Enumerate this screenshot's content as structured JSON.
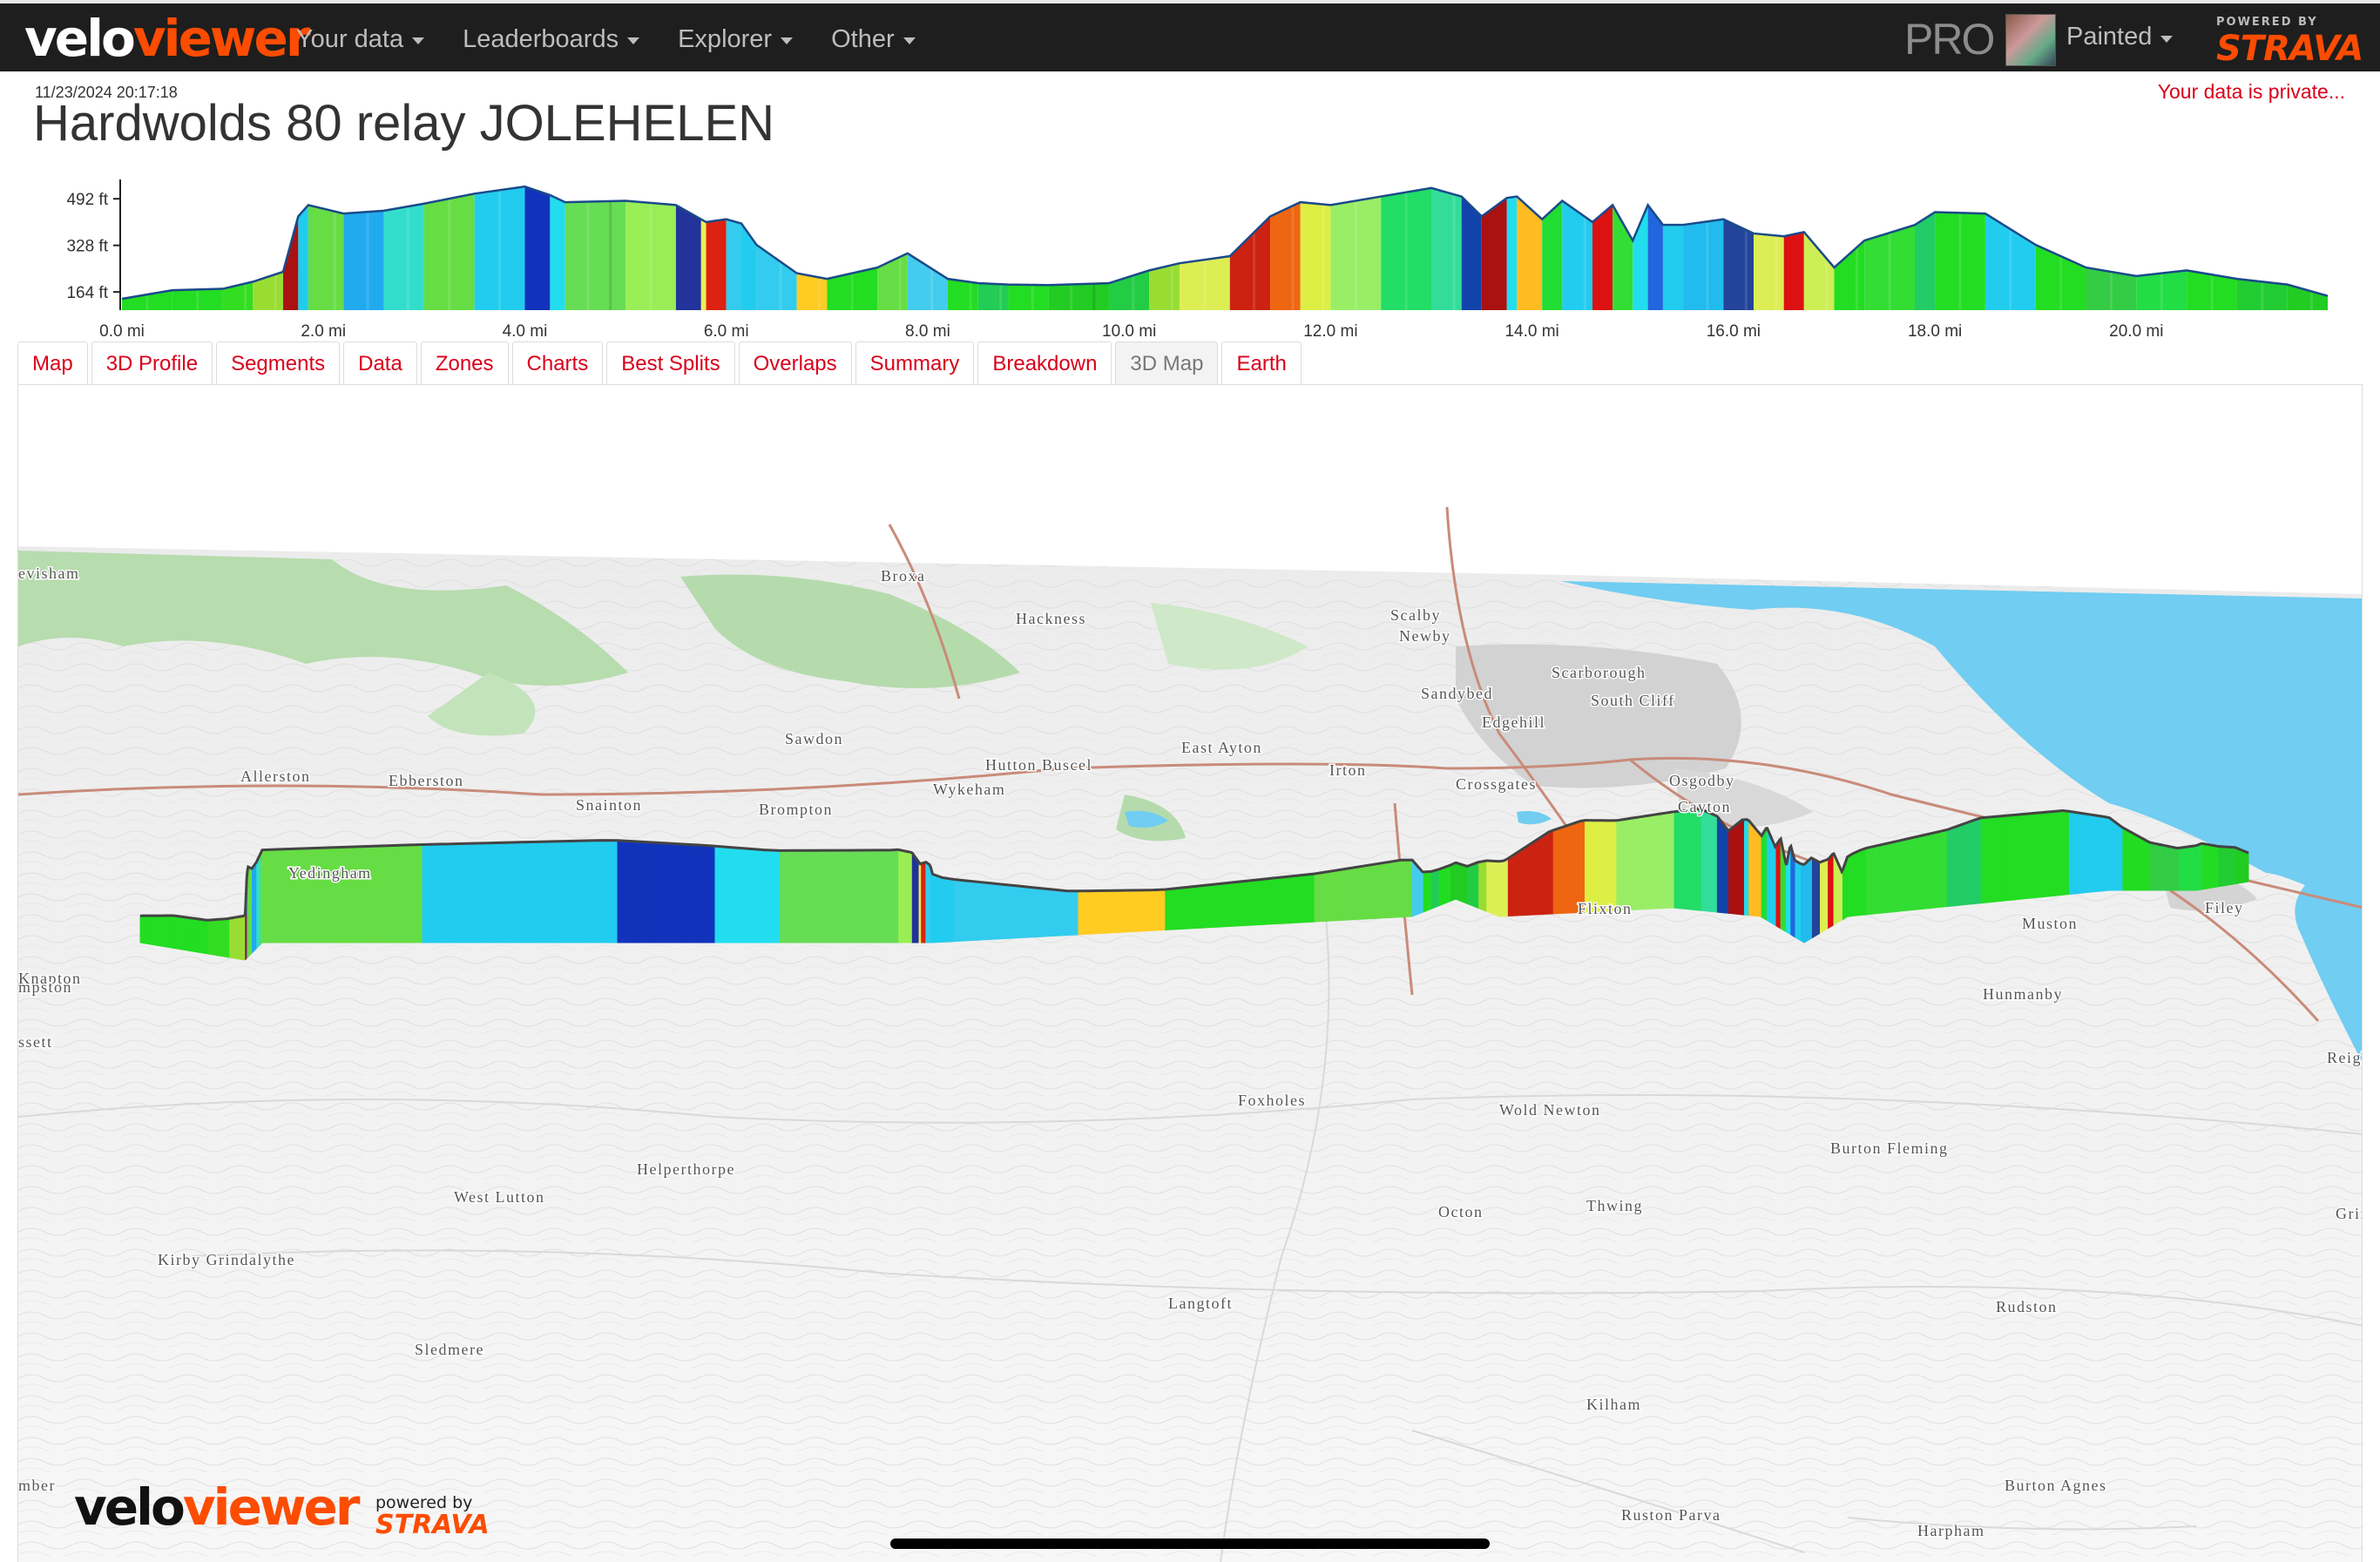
{
  "app": {
    "logo_part1": "velo",
    "logo_part2": "viewer"
  },
  "nav": {
    "items": [
      "Your data",
      "Leaderboards",
      "Explorer",
      "Other"
    ]
  },
  "user": {
    "pro_label": "PRO",
    "name": "Painted",
    "powered_by": "POWERED BY",
    "strava": "STRAVA"
  },
  "activity": {
    "timestamp": "11/23/2024 20:17:18",
    "title": "Hardwolds 80 relay JOLEHELEN",
    "privacy_notice": "Your data is private..."
  },
  "chart_data": {
    "type": "area",
    "y_ticks": [
      "492 ft",
      "328 ft",
      "164 ft"
    ],
    "y_tick_values": [
      492,
      328,
      164
    ],
    "x_ticks": [
      "0.0 mi",
      "2.0 mi",
      "4.0 mi",
      "6.0 mi",
      "8.0 mi",
      "10.0 mi",
      "12.0 mi",
      "14.0 mi",
      "16.0 mi",
      "18.0 mi",
      "20.0 mi"
    ],
    "x_tick_values": [
      0,
      2,
      4,
      6,
      8,
      10,
      12,
      14,
      16,
      18,
      20
    ],
    "xlim": [
      0,
      21.9
    ],
    "ylim": [
      100,
      560
    ],
    "x": [
      0.0,
      0.5,
      1.0,
      1.3,
      1.6,
      1.75,
      1.85,
      2.2,
      2.6,
      3.0,
      3.5,
      4.0,
      4.25,
      4.4,
      5.0,
      5.5,
      5.75,
      5.8,
      6.0,
      6.15,
      6.3,
      6.7,
      7.0,
      7.5,
      7.8,
      8.2,
      8.5,
      8.8,
      9.2,
      9.8,
      10.2,
      10.5,
      11.0,
      11.4,
      11.7,
      12.0,
      12.5,
      13.0,
      13.3,
      13.5,
      13.75,
      13.85,
      14.1,
      14.3,
      14.6,
      14.8,
      15.0,
      15.15,
      15.3,
      15.5,
      15.9,
      16.2,
      16.5,
      16.7,
      17.0,
      17.3,
      17.8,
      18.0,
      18.5,
      19.0,
      19.5,
      20.0,
      20.5,
      21.0,
      21.5,
      21.9
    ],
    "y": [
      140,
      170,
      175,
      200,
      235,
      430,
      470,
      440,
      450,
      475,
      510,
      535,
      505,
      480,
      485,
      470,
      420,
      410,
      420,
      405,
      330,
      230,
      210,
      250,
      300,
      210,
      195,
      190,
      188,
      195,
      240,
      265,
      290,
      430,
      480,
      470,
      500,
      530,
      500,
      430,
      495,
      500,
      420,
      485,
      410,
      470,
      345,
      470,
      400,
      400,
      420,
      370,
      360,
      375,
      250,
      345,
      400,
      445,
      440,
      330,
      250,
      220,
      240,
      210,
      190,
      150
    ],
    "colors": [
      "#22dd22",
      "#22dd22",
      "#33dd22",
      "#99dd33",
      "#aa1111",
      "#22ccee",
      "#66dd44",
      "#22aaee",
      "#33ddcc",
      "#66dd44",
      "#22ccee",
      "#1133bb",
      "#22ddee",
      "#66dd55",
      "#99ee55",
      "#223399",
      "#eeee55",
      "#dd2211",
      "#33ccee",
      "#22ccee",
      "#33ccee",
      "#ffcc22",
      "#22dd22",
      "#66dd44",
      "#44ccee",
      "#22dd22",
      "#22cc55",
      "#22dd22",
      "#22cc22",
      "#22cc44",
      "#99dd33",
      "#ddee55",
      "#cc2211",
      "#ee6611",
      "#ddee44",
      "#99ee66",
      "#22dd66",
      "#33dd99",
      "#1144aa",
      "#aa1111",
      "#22ddee",
      "#ffbb22",
      "#22dd33",
      "#22ccee",
      "#dd1111",
      "#33dd33",
      "#22ddee",
      "#2266dd",
      "#22ccee",
      "#22bbee",
      "#224499",
      "#ddee55",
      "#dd1111",
      "#ccee55",
      "#22dd22",
      "#33dd33",
      "#22cc66",
      "#22dd22",
      "#22ccee",
      "#22dd22",
      "#33cc44",
      "#22dd44",
      "#22dd22",
      "#22cc33",
      "#22cc22",
      "#2222dd"
    ]
  },
  "tabs": [
    "Map",
    "3D Profile",
    "Segments",
    "Data",
    "Zones",
    "Charts",
    "Best Splits",
    "Overlaps",
    "Summary",
    "Breakdown",
    "3D Map",
    "Earth"
  ],
  "active_tab": "3D Map",
  "map": {
    "places": [
      "evisham",
      "Broxa",
      "Hackness",
      "Scalby",
      "Newby",
      "Scarborough",
      "Sandybed",
      "South Cliff",
      "Edgehill",
      "Sawdon",
      "Hutton Buscel",
      "East Ayton",
      "Irton",
      "Crossgates",
      "Osgodby",
      "Cayton",
      "Allerston",
      "Ebberston",
      "Snainton",
      "Wykeham",
      "Brompton",
      "Yedingham",
      "Flixton",
      "Muston",
      "Filey",
      "Hunmanby",
      "Reigh",
      "Knapton",
      "mpston",
      "ssett",
      "Foxholes",
      "Wold Newton",
      "Burton Fleming",
      "Helperthorpe",
      "West Lutton",
      "Octon",
      "Thwing",
      "Grin",
      "Kirby Grindalythe",
      "Langtoft",
      "Rudston",
      "Sledmere",
      "Kilham",
      "Burton Agnes",
      "Ruston Parva",
      "Harpham",
      "mber"
    ]
  },
  "footer": {
    "logo_part1": "velo",
    "logo_part2": "viewer",
    "powered_by": "powered by",
    "strava": "STRAVA"
  }
}
